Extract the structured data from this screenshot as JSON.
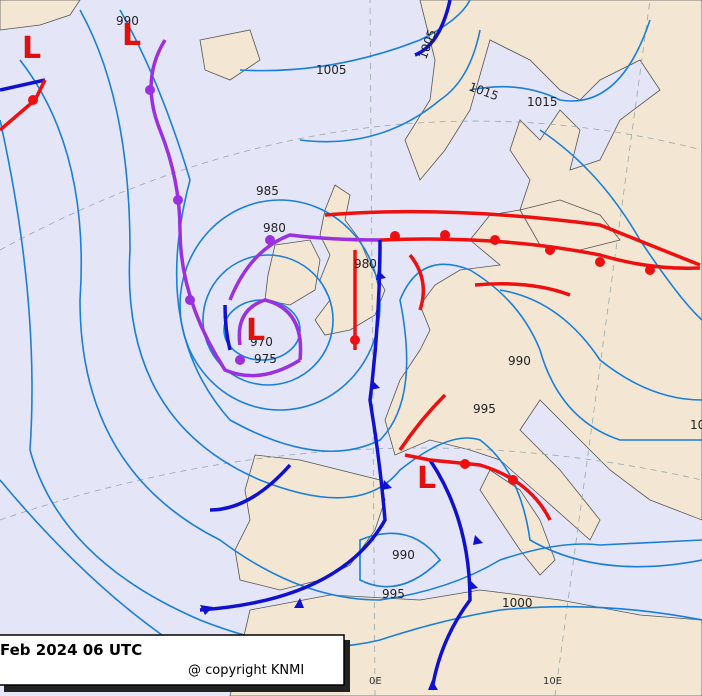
{
  "title": "Feb 2024 06 UTC",
  "copyright": "@ copyright KNMI",
  "isobar_labels": [
    "990",
    "1005",
    "1005",
    "1015",
    "1015",
    "985",
    "980",
    "980",
    "970",
    "975",
    "990",
    "995",
    "990",
    "995",
    "1000",
    "10"
  ],
  "longitude_labels": [
    "0E",
    "10E"
  ],
  "pressure_centers": [
    "L",
    "L",
    "L",
    "L"
  ]
}
